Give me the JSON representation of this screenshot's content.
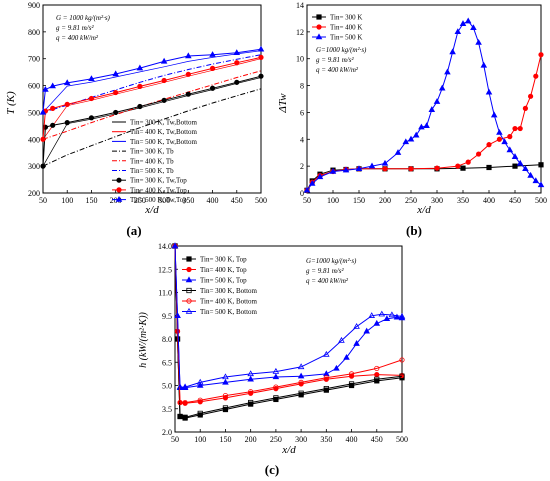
{
  "panels": [
    {
      "id": "a",
      "caption": "(a)",
      "chart_data": {
        "type": "line",
        "xlabel": "x/d",
        "ylabel": "T (K)",
        "xlim": [
          50,
          500
        ],
        "ylim": [
          200,
          900
        ],
        "x_ticks": [
          50,
          100,
          150,
          200,
          250,
          300,
          350,
          400,
          450,
          500
        ],
        "y_ticks": [
          200,
          300,
          400,
          500,
          600,
          700,
          800,
          900
        ],
        "grid": false,
        "annotation": [
          "G = 1000 kg/(m²·s)",
          "g = 9.81 m/s²",
          "q = 400 kW/m²"
        ],
        "legend_position": "bottom-right",
        "series": [
          {
            "name": "Tin= 300 K, Tw,Bottom",
            "color": "#000000",
            "style": "solid-thin",
            "x": [
              50,
              100,
              150,
              200,
              250,
              300,
              350,
              400,
              450,
              500
            ],
            "y": [
              300,
              458,
              475,
              495,
              517,
              540,
              563,
              585,
              608,
              630
            ]
          },
          {
            "name": "Tin= 400 K, Tw,Bottom",
            "color": "#ff0000",
            "style": "solid-thin",
            "x": [
              50,
              100,
              150,
              200,
              250,
              300,
              350,
              400,
              450,
              500
            ],
            "y": [
              400,
              525,
              545,
              568,
              590,
              612,
              635,
              657,
              678,
              700
            ]
          },
          {
            "name": "Tin= 500 K, Tw,Bottom",
            "color": "#0000ff",
            "style": "solid-thin",
            "x": [
              50,
              100,
              150,
              200,
              250,
              300,
              350,
              400,
              450,
              500
            ],
            "y": [
              500,
              598,
              613,
              632,
              651,
              670,
              690,
              705,
              718,
              730
            ]
          },
          {
            "name": "Tin= 300 K, Tb",
            "color": "#000000",
            "style": "dashdot",
            "x": [
              50,
              100,
              150,
              200,
              250,
              300,
              350,
              400,
              450,
              500
            ],
            "y": [
              300,
              342,
              376,
              410,
              443,
              475,
              506,
              535,
              562,
              588
            ]
          },
          {
            "name": "Tin= 400 K, Tb",
            "color": "#ff0000",
            "style": "dashdot",
            "x": [
              50,
              100,
              150,
              200,
              250,
              300,
              350,
              400,
              450,
              500
            ],
            "y": [
              400,
              430,
              462,
              492,
              521,
              549,
              576,
              603,
              630,
              655
            ]
          },
          {
            "name": "Tin= 500 K, Tb",
            "color": "#0000ff",
            "style": "dashdot",
            "x": [
              50,
              100,
              150,
              200,
              250,
              300,
              350,
              400,
              450,
              500
            ],
            "y": [
              500,
              527,
              556,
              584,
              612,
              638,
              660,
              680,
              698,
              715
            ]
          },
          {
            "name": "Tin= 300 K, Tw,Top",
            "color": "#000000",
            "style": "solid-marker",
            "marker": "circle",
            "x": [
              50,
              55,
              70,
              100,
              150,
              200,
              250,
              300,
              350,
              400,
              450,
              500
            ],
            "y": [
              300,
              445,
              452,
              462,
              480,
              500,
              522,
              545,
              568,
              590,
              612,
              635
            ]
          },
          {
            "name": "Tin= 400 K, Tw,Top",
            "color": "#ff0000",
            "style": "solid-marker",
            "marker": "circle",
            "x": [
              50,
              55,
              70,
              100,
              150,
              200,
              250,
              300,
              350,
              400,
              450,
              500
            ],
            "y": [
              400,
              505,
              515,
              530,
              552,
              574,
              597,
              619,
              642,
              664,
              685,
              705
            ]
          },
          {
            "name": "Tin= 500 K, Tw,Top",
            "color": "#0000ff",
            "style": "solid-marker",
            "marker": "triangle",
            "x": [
              50,
              55,
              70,
              100,
              150,
              200,
              250,
              300,
              350,
              400,
              450,
              500
            ],
            "y": [
              500,
              585,
              598,
              610,
              625,
              643,
              665,
              690,
              710,
              715,
              722,
              735
            ]
          }
        ]
      }
    },
    {
      "id": "b",
      "caption": "(b)",
      "chart_data": {
        "type": "line",
        "xlabel": "x/d",
        "ylabel": "ΔTw",
        "xlim": [
          50,
          500
        ],
        "ylim": [
          0,
          14
        ],
        "x_ticks": [
          50,
          100,
          150,
          200,
          250,
          300,
          350,
          400,
          450,
          500
        ],
        "y_ticks": [
          0,
          2,
          4,
          6,
          8,
          10,
          12,
          14
        ],
        "grid": false,
        "annotation": [
          "G=1000 kg/(m²·s)",
          "g = 9.81 m/s²",
          "q = 400 kW/m²"
        ],
        "legend_position": "top-left",
        "series": [
          {
            "name": "Tin= 300 K",
            "color": "#000000",
            "marker": "square",
            "x": [
              50,
              60,
              75,
              100,
              125,
              150,
              200,
              250,
              300,
              350,
              400,
              450,
              500
            ],
            "y": [
              0.2,
              0.9,
              1.4,
              1.7,
              1.75,
              1.8,
              1.8,
              1.8,
              1.8,
              1.85,
              1.9,
              2.0,
              2.1
            ]
          },
          {
            "name": "Tin= 400 K",
            "color": "#ff0000",
            "marker": "circle",
            "x": [
              50,
              60,
              75,
              100,
              125,
              150,
              200,
              250,
              300,
              340,
              360,
              380,
              400,
              420,
              440,
              450,
              460,
              470,
              480,
              490,
              500
            ],
            "y": [
              0.2,
              0.8,
              1.3,
              1.6,
              1.75,
              1.8,
              1.8,
              1.8,
              1.85,
              2.0,
              2.3,
              2.9,
              3.6,
              4.0,
              4.2,
              4.8,
              4.8,
              6.3,
              7.2,
              8.7,
              10.3
            ]
          },
          {
            "name": "Tin= 500 K",
            "color": "#0000ff",
            "marker": "triangle",
            "x": [
              50,
              60,
              75,
              100,
              125,
              150,
              175,
              200,
              225,
              240,
              250,
              260,
              270,
              280,
              290,
              300,
              310,
              320,
              330,
              340,
              350,
              360,
              370,
              380,
              390,
              400,
              410,
              420,
              430,
              440,
              450,
              460,
              470,
              480,
              490,
              500
            ],
            "y": [
              0.2,
              0.7,
              1.2,
              1.6,
              1.7,
              1.8,
              2.0,
              2.2,
              3.0,
              3.8,
              4.0,
              4.3,
              4.9,
              5.0,
              6.2,
              6.8,
              7.8,
              9.0,
              10.5,
              12.0,
              12.6,
              12.8,
              12.3,
              11.2,
              9.5,
              7.5,
              5.8,
              4.5,
              3.8,
              3.2,
              2.7,
              2.2,
              1.8,
              1.3,
              0.9,
              0.6
            ]
          }
        ]
      }
    },
    {
      "id": "c",
      "caption": "(c)",
      "chart_data": {
        "type": "line",
        "xlabel": "x/d",
        "ylabel": "h (kW/(m²·K))",
        "xlim": [
          50,
          500
        ],
        "ylim": [
          2.0,
          14.0
        ],
        "x_ticks": [
          50,
          100,
          150,
          200,
          250,
          300,
          350,
          400,
          450,
          500
        ],
        "y_ticks": [
          2.0,
          3.5,
          5.0,
          6.5,
          8.0,
          9.5,
          11.0,
          12.5,
          14.0
        ],
        "y_tick_labels": [
          "2.0",
          "3.5",
          "5.0",
          "6.5",
          "8.0",
          "9.5",
          "11.0",
          "12.5",
          "14.0"
        ],
        "grid": false,
        "annotation": [
          "G=1000 kg/(m²·s)",
          "g = 9.81 m/s²",
          "q = 400 kW/m²"
        ],
        "legend_position": "top-left",
        "series": [
          {
            "name": "Tin= 300 K, Top",
            "color": "#000000",
            "marker": "square",
            "x": [
              50,
              55,
              60,
              70,
              100,
              150,
              200,
              250,
              300,
              350,
              400,
              450,
              500
            ],
            "y": [
              14.0,
              8.0,
              3.0,
              2.9,
              3.1,
              3.45,
              3.8,
              4.1,
              4.4,
              4.7,
              5.0,
              5.3,
              5.5
            ]
          },
          {
            "name": "Tin= 400 K, Top",
            "color": "#ff0000",
            "marker": "circle",
            "x": [
              50,
              55,
              60,
              70,
              100,
              150,
              200,
              250,
              300,
              350,
              400,
              450,
              500
            ],
            "y": [
              14.0,
              8.5,
              3.9,
              3.85,
              3.95,
              4.2,
              4.5,
              4.8,
              5.1,
              5.4,
              5.6,
              5.7,
              5.65
            ]
          },
          {
            "name": "Tin= 500 K, Top",
            "color": "#0000ff",
            "marker": "triangle",
            "x": [
              50,
              55,
              60,
              70,
              100,
              150,
              200,
              250,
              300,
              350,
              370,
              390,
              410,
              430,
              450,
              470,
              490,
              500
            ],
            "y": [
              14.0,
              9.5,
              4.85,
              4.85,
              5.0,
              5.2,
              5.4,
              5.55,
              5.6,
              5.75,
              6.1,
              6.8,
              7.7,
              8.5,
              9.0,
              9.3,
              9.4,
              9.35
            ]
          },
          {
            "name": "Tin= 300 K, Bottom",
            "color": "#000000",
            "marker": "square-open",
            "x": [
              50,
              55,
              60,
              70,
              100,
              150,
              200,
              250,
              300,
              350,
              400,
              450,
              500
            ],
            "y": [
              14.0,
              8.0,
              3.0,
              2.95,
              3.2,
              3.55,
              3.9,
              4.2,
              4.5,
              4.8,
              5.1,
              5.4,
              5.6
            ]
          },
          {
            "name": "Tin= 400 K, Bottom",
            "color": "#ff0000",
            "marker": "circle-open",
            "x": [
              50,
              55,
              60,
              70,
              100,
              150,
              200,
              250,
              300,
              350,
              400,
              450,
              500
            ],
            "y": [
              14.0,
              8.5,
              3.9,
              3.9,
              4.05,
              4.35,
              4.6,
              4.9,
              5.2,
              5.5,
              5.75,
              6.1,
              6.65
            ]
          },
          {
            "name": "Tin= 500 K, Bottom",
            "color": "#0000ff",
            "marker": "triangle-open",
            "x": [
              50,
              55,
              60,
              70,
              100,
              150,
              200,
              250,
              300,
              350,
              380,
              410,
              440,
              460,
              480,
              500
            ],
            "y": [
              14.0,
              9.5,
              4.9,
              4.9,
              5.2,
              5.55,
              5.75,
              5.9,
              6.2,
              7.0,
              7.9,
              8.8,
              9.5,
              9.6,
              9.55,
              9.45
            ]
          }
        ]
      }
    }
  ]
}
